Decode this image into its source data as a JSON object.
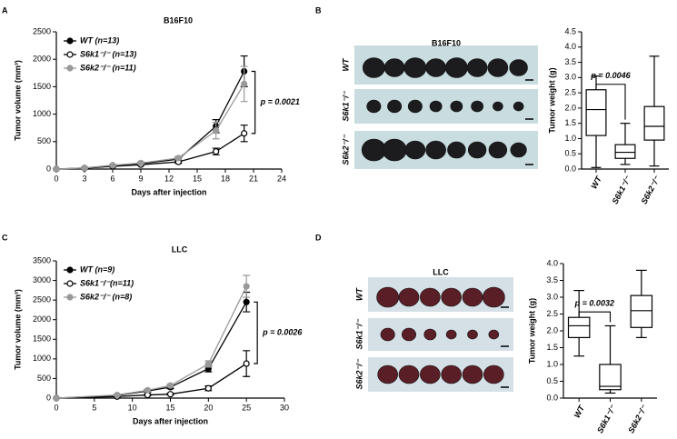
{
  "chart_data": [
    {
      "panel": "A",
      "type": "line",
      "title": "B16F10",
      "x_label": "Days after injection",
      "y_label": "Tumor volume (mm³)",
      "x": [
        0,
        3,
        6,
        9,
        13,
        17,
        20
      ],
      "series": [
        {
          "name": "WT (n=13)",
          "color": "#000000",
          "marker_fill": "#000000",
          "values": [
            0,
            20,
            60,
            100,
            180,
            780,
            1780
          ],
          "errors": [
            0,
            10,
            15,
            20,
            30,
            120,
            280
          ]
        },
        {
          "name": "S6k1⁻/⁻ (n=13)",
          "color": "#000000",
          "marker_fill": "#ffffff",
          "values": [
            0,
            15,
            50,
            80,
            130,
            320,
            650
          ],
          "errors": [
            0,
            8,
            10,
            15,
            25,
            60,
            150
          ]
        },
        {
          "name": "S6k2⁻/⁻ (n=11)",
          "color": "#999999",
          "marker_fill": "#999999",
          "values": [
            0,
            20,
            70,
            110,
            200,
            700,
            1550
          ],
          "errors": [
            0,
            10,
            15,
            20,
            30,
            150,
            320
          ]
        }
      ],
      "xlim": [
        0,
        24
      ],
      "xticks": [
        0,
        3,
        6,
        9,
        12,
        15,
        18,
        21,
        24
      ],
      "ylim": [
        0,
        2500
      ],
      "yticks": [
        0,
        500,
        1000,
        1500,
        2000,
        2500
      ],
      "annotation": "p = 0.0021"
    },
    {
      "panel": "B",
      "type": "box",
      "y_label": "Tumor weight (g)",
      "photo": {
        "title": "B16F10",
        "rows": [
          "WT",
          "S6k1⁻/⁻",
          "S6k2⁻/⁻"
        ]
      },
      "categories": [
        "WT",
        "S6k1⁻/⁻",
        "S6k2⁻/⁻"
      ],
      "boxes": [
        {
          "min": 0.05,
          "q1": 1.1,
          "median": 1.95,
          "q3": 2.6,
          "max": 3.05
        },
        {
          "min": 0.15,
          "q1": 0.35,
          "median": 0.55,
          "q3": 0.8,
          "max": 1.5
        },
        {
          "min": 0.1,
          "q1": 0.95,
          "median": 1.4,
          "q3": 2.05,
          "max": 3.7
        }
      ],
      "color": "#000000",
      "ylim": [
        0,
        4.5
      ],
      "yticks": [
        {
          "value": 0,
          "label": "0.0"
        },
        {
          "value": 0.5,
          "label": "0.5"
        },
        {
          "value": 1,
          "label": "1.0"
        },
        {
          "value": 1.5,
          "label": "1.5"
        },
        {
          "value": 2,
          "label": "2.0"
        },
        {
          "value": 2.5,
          "label": "2.5"
        },
        {
          "value": 3,
          "label": "3.0"
        },
        {
          "value": 3.5,
          "label": "3.5"
        },
        {
          "value": 4,
          "label": "4.0"
        },
        {
          "value": 4.5,
          "label": "4.5"
        }
      ],
      "annotation": "p = 0.0046"
    },
    {
      "panel": "C",
      "type": "line",
      "title": "LLC",
      "x_label": "Days after injection",
      "y_label": "Tumor volume (mm³)",
      "x": [
        0,
        8,
        12,
        15,
        20,
        25
      ],
      "series": [
        {
          "name": "WT (n=9)",
          "color": "#000000",
          "marker_fill": "#000000",
          "values": [
            0,
            70,
            180,
            280,
            750,
            2450
          ],
          "errors": [
            0,
            20,
            30,
            40,
            80,
            250
          ]
        },
        {
          "name": "S6k1⁻/⁻(n=11)",
          "color": "#000000",
          "marker_fill": "#ffffff",
          "values": [
            0,
            40,
            80,
            100,
            250,
            880
          ],
          "errors": [
            0,
            10,
            15,
            20,
            60,
            330
          ]
        },
        {
          "name": "S6k2⁻/⁻ (n=8)",
          "color": "#999999",
          "marker_fill": "#999999",
          "values": [
            0,
            80,
            200,
            320,
            870,
            2850
          ],
          "errors": [
            0,
            20,
            30,
            40,
            80,
            280
          ]
        }
      ],
      "xlim": [
        0,
        30
      ],
      "xticks": [
        0,
        5,
        10,
        15,
        20,
        25,
        30
      ],
      "ylim": [
        0,
        3500
      ],
      "yticks": [
        0,
        500,
        1000,
        1500,
        2000,
        2500,
        3000,
        3500
      ],
      "annotation": "p = 0.0026"
    },
    {
      "panel": "D",
      "type": "box",
      "y_label": "Tumor weight (g)",
      "photo": {
        "title": "LLC",
        "rows": [
          "WT",
          "S6k1⁻/⁻",
          "S6k2⁻/⁻"
        ]
      },
      "categories": [
        "WT",
        "S6k1⁻/⁻",
        "S6k2⁻/⁻"
      ],
      "boxes": [
        {
          "min": 1.25,
          "q1": 1.8,
          "median": 2.15,
          "q3": 2.4,
          "max": 3.2
        },
        {
          "min": 0.15,
          "q1": 0.25,
          "median": 0.35,
          "q3": 1.0,
          "max": 2.15
        },
        {
          "min": 1.8,
          "q1": 2.1,
          "median": 2.6,
          "q3": 3.05,
          "max": 3.8
        }
      ],
      "color": "#000000",
      "ylim": [
        0,
        4
      ],
      "yticks": [
        {
          "value": 0,
          "label": "0.0"
        },
        {
          "value": 0.5,
          "label": "0.5"
        },
        {
          "value": 1,
          "label": "1.0"
        },
        {
          "value": 1.5,
          "label": "1.5"
        },
        {
          "value": 2,
          "label": "2.0"
        },
        {
          "value": 2.5,
          "label": "2.5"
        },
        {
          "value": 3,
          "label": "3.0"
        },
        {
          "value": 3.5,
          "label": "3.5"
        },
        {
          "value": 4,
          "label": "4.0"
        }
      ],
      "annotation": "p = 0.0032"
    }
  ]
}
